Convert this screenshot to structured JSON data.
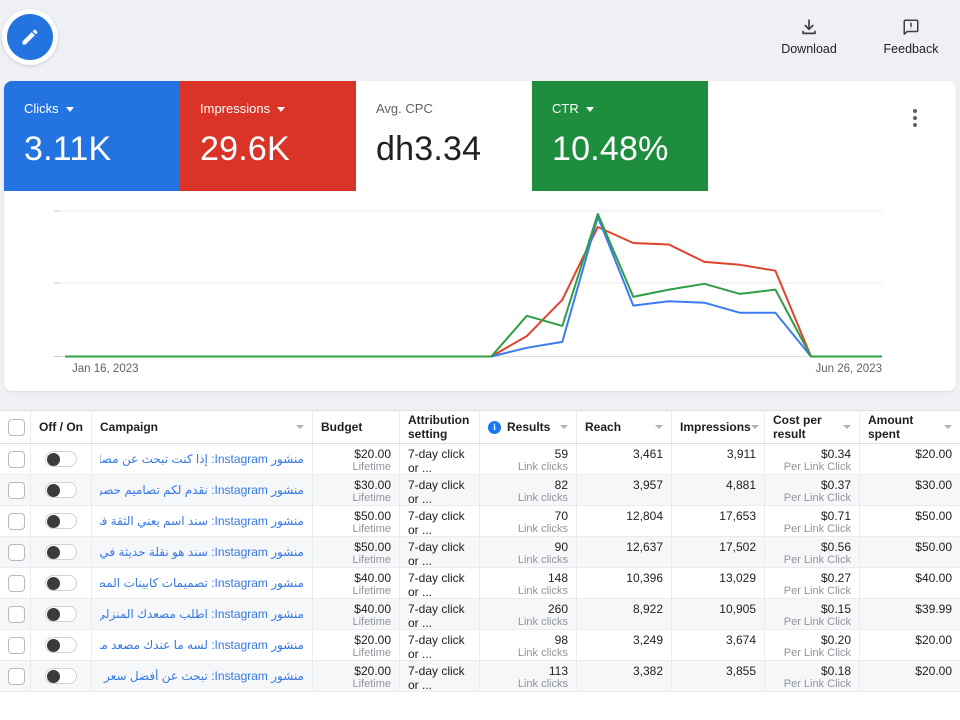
{
  "topbar": {
    "download_label": "Download",
    "feedback_label": "Feedback"
  },
  "metrics": {
    "cards": [
      {
        "id": "clicks",
        "label": "Clicks",
        "value": "3.11K",
        "bg": "#2374e1",
        "fg": "#ffffff",
        "dropdown": true
      },
      {
        "id": "impressions",
        "label": "Impressions",
        "value": "29.6K",
        "bg": "#da3327",
        "fg": "#ffffff",
        "dropdown": true
      },
      {
        "id": "avg-cpc",
        "label": "Avg. CPC",
        "value": "dh3.34",
        "bg": "#ffffff",
        "fg": "#202124",
        "label_color": "#5f6368",
        "dropdown": false
      },
      {
        "id": "ctr",
        "label": "CTR",
        "value": "10.48%",
        "bg": "#1e8e3e",
        "fg": "#ffffff",
        "dropdown": true
      }
    ]
  },
  "chart_data": {
    "type": "line",
    "title": "",
    "x_axis": {
      "start_label": "Jan 16, 2023",
      "end_label": "Jun 26, 2023",
      "unit": "week",
      "points": 24
    },
    "ylim": [
      0,
      100
    ],
    "grid": true,
    "legend": "none",
    "series": [
      {
        "name": "Impressions",
        "color": "#e0432d",
        "values": [
          0,
          0,
          0,
          0,
          0,
          0,
          0,
          0,
          0,
          0,
          0,
          0,
          0,
          14,
          39,
          89,
          78,
          77,
          65,
          63,
          59,
          0,
          0,
          0
        ]
      },
      {
        "name": "Clicks",
        "color": "#3b7cf0",
        "values": [
          0,
          0,
          0,
          0,
          0,
          0,
          0,
          0,
          0,
          0,
          0,
          0,
          0,
          6,
          10,
          96,
          35,
          38,
          37,
          30,
          30,
          0,
          0,
          0
        ]
      },
      {
        "name": "CTR",
        "color": "#2f9e44",
        "values": [
          0,
          0,
          0,
          0,
          0,
          0,
          0,
          0,
          0,
          0,
          0,
          0,
          0,
          28,
          21,
          98,
          41,
          46,
          50,
          43,
          46,
          0,
          0,
          0
        ]
      }
    ]
  },
  "table": {
    "columns": [
      {
        "key": "select",
        "label": "",
        "sortable": false,
        "info": false
      },
      {
        "key": "off_on",
        "label": "Off / On",
        "sortable": false,
        "info": false
      },
      {
        "key": "campaign",
        "label": "Campaign",
        "sortable": true,
        "info": false
      },
      {
        "key": "budget",
        "label": "Budget",
        "sortable": false,
        "info": false
      },
      {
        "key": "attribution",
        "label": "Attribution setting",
        "sortable": false,
        "info": false
      },
      {
        "key": "results",
        "label": "Results",
        "sortable": true,
        "info": true
      },
      {
        "key": "reach",
        "label": "Reach",
        "sortable": true,
        "info": false
      },
      {
        "key": "impressions",
        "label": "Impressions",
        "sortable": true,
        "info": false
      },
      {
        "key": "cost",
        "label": "Cost per result",
        "sortable": true,
        "info": false
      },
      {
        "key": "spent",
        "label": "Amount spent",
        "sortable": true,
        "info": false
      }
    ],
    "rows": [
      {
        "toggle": "off",
        "checked": false,
        "campaign": "منشور Instagram: إذا كنت تبحث عن مصاعد توفر لك...",
        "budget": "$20.00",
        "budget_type": "Lifetime",
        "attribution": "7-day click or ...",
        "results": "59",
        "results_type": "Link clicks",
        "reach": "3,461",
        "impressions": "3,911",
        "cost_per_result": "$0.34",
        "cost_type": "Per Link Click",
        "amount_spent": "$20.00"
      },
      {
        "toggle": "off",
        "checked": false,
        "campaign": "منشور Instagram: نقدم لكم تصاميم حصرية لكابينات...",
        "budget": "$30.00",
        "budget_type": "Lifetime",
        "attribution": "7-day click or ...",
        "results": "82",
        "results_type": "Link clicks",
        "reach": "3,957",
        "impressions": "4,881",
        "cost_per_result": "$0.37",
        "cost_type": "Per Link Click",
        "amount_spent": "$30.00"
      },
      {
        "toggle": "off",
        "checked": false,
        "campaign": "منشور Instagram: سند اسم يعني الثقة في عالم...",
        "budget": "$50.00",
        "budget_type": "Lifetime",
        "attribution": "7-day click or ...",
        "results": "70",
        "results_type": "Link clicks",
        "reach": "12,804",
        "impressions": "17,653",
        "cost_per_result": "$0.71",
        "cost_type": "Per Link Click",
        "amount_spent": "$50.00"
      },
      {
        "toggle": "off",
        "checked": false,
        "campaign": "منشور Instagram: سند هو نقلة حديثة في عالم...",
        "budget": "$50.00",
        "budget_type": "Lifetime",
        "attribution": "7-day click or ...",
        "results": "90",
        "results_type": "Link clicks",
        "reach": "12,637",
        "impressions": "17,502",
        "cost_per_result": "$0.56",
        "cost_type": "Per Link Click",
        "amount_spent": "$50.00"
      },
      {
        "toggle": "off",
        "checked": false,
        "campaign": "منشور Instagram: تصميمات كابينات المصاعد من سند...",
        "budget": "$40.00",
        "budget_type": "Lifetime",
        "attribution": "7-day click or ...",
        "results": "148",
        "results_type": "Link clicks",
        "reach": "10,396",
        "impressions": "13,029",
        "cost_per_result": "$0.27",
        "cost_type": "Per Link Click",
        "amount_spent": "$40.00"
      },
      {
        "toggle": "off",
        "checked": false,
        "campaign": "منشور Instagram: اطلب مصعدك المنزلي الآن من سند،...",
        "budget": "$40.00",
        "budget_type": "Lifetime",
        "attribution": "7-day click or ...",
        "results": "260",
        "results_type": "Link clicks",
        "reach": "8,922",
        "impressions": "10,905",
        "cost_per_result": "$0.15",
        "cost_type": "Per Link Click",
        "amount_spent": "$39.99"
      },
      {
        "toggle": "off",
        "checked": false,
        "campaign": "منشور Instagram: لسه ما عندك مصعد منزلي؟ 🤔 اختر...",
        "budget": "$20.00",
        "budget_type": "Lifetime",
        "attribution": "7-day click or ...",
        "results": "98",
        "results_type": "Link clicks",
        "reach": "3,249",
        "impressions": "3,674",
        "cost_per_result": "$0.20",
        "cost_type": "Per Link Click",
        "amount_spent": "$20.00"
      },
      {
        "toggle": "off",
        "checked": false,
        "campaign": "منشور Instagram: تبحث عن أفضل سعر للمصاعد...",
        "budget": "$20.00",
        "budget_type": "Lifetime",
        "attribution": "7-day click or ...",
        "results": "113",
        "results_type": "Link clicks",
        "reach": "3,382",
        "impressions": "3,855",
        "cost_per_result": "$0.18",
        "cost_type": "Per Link Click",
        "amount_spent": "$20.00"
      }
    ]
  }
}
